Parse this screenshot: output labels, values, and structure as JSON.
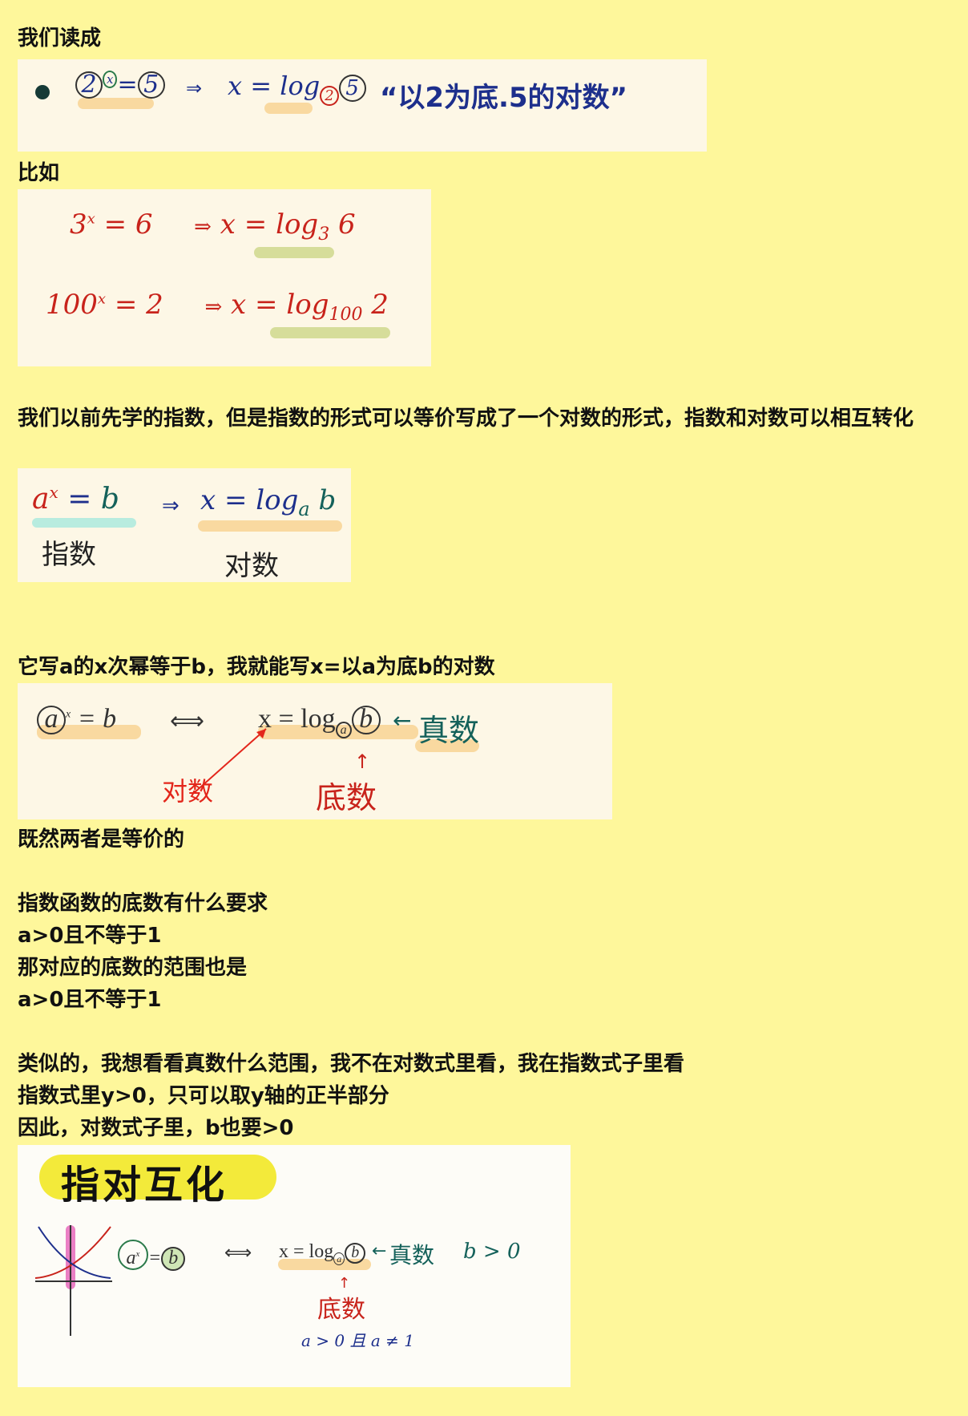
{
  "text": {
    "p1": "我们读成",
    "p2": "比如",
    "p3": "我们以前先学的指数，但是指数的形式可以等价写成了一个对数的形式，指数和对数可以相互转化",
    "p4": "它写a的x次幂等于b，我就能写x=以a为底b的对数",
    "p5": "既然两者是等价的",
    "p6": "指数函数的底数有什么要求",
    "p7": "a>0且不等于1",
    "p8": "那对应的底数的范围也是",
    "p9": "a>0且不等于1",
    "p10": "类似的，我想看看真数什么范围，我不在对数式里看，我在指数式子里看",
    "p11": "指数式里y>0，只可以取y轴的正半部分",
    "p12": "因此，对数式子里，b也要>0"
  },
  "img1": {
    "base": "2",
    "exp": "x",
    "eq": "=",
    "val": "5",
    "arrow": "⇒",
    "lhs": "x =",
    "log": "log",
    "sub": "2",
    "arg": "5",
    "caption": "“以2为底.5的对数”"
  },
  "img2": {
    "row1": {
      "base": "3",
      "exp": "x",
      "rest": "= 6",
      "arrow": "⇒",
      "lhs": "x =",
      "log": "log",
      "sub": "3",
      "arg": "6"
    },
    "row2": {
      "base": "100",
      "exp": "x",
      "rest": "= 2",
      "arrow": "⇒",
      "lhs": "x =",
      "log": "log",
      "sub": "100",
      "arg": "2"
    }
  },
  "img3": {
    "base": "a",
    "exp": "x",
    "eq": "=",
    "val": "b",
    "arrow": "⇒",
    "lhs": "x =",
    "log": "log",
    "sub": "a",
    "arg": "b",
    "label_left": "指数",
    "label_right": "对数"
  },
  "img4": {
    "base": "a",
    "exp": "x",
    "eq": "= b",
    "arrow": "⟺",
    "lhs": "x = log",
    "sub": "a",
    "arg": "b",
    "arrow_label": "←",
    "zhenshu": "真数",
    "duishu": "对数",
    "up": "↑",
    "dishu": "底数"
  },
  "img5": {
    "title": "指对互化",
    "base": "a",
    "exp": "x",
    "eq": "=",
    "val": "b",
    "arrow": "⟺",
    "lhs": "x = log",
    "sub": "a",
    "arg": "b",
    "arrow_label": "←",
    "zhenshu": "真数",
    "cond_b": "b > 0",
    "up": "↑",
    "dishu": "底数",
    "cond_a": "a > 0 且 a ≠ 1"
  },
  "colors": {
    "page_bg": "#fef79b",
    "card_bg": "#fdf7e6",
    "highlight_orange": "#f9d9a0",
    "highlight_green": "#d6dd9a",
    "highlight_cyan": "#b8ecdf",
    "navy": "#1d2f8c",
    "red": "#c8231b",
    "teal": "#14615a",
    "pill": "#f3ea3a"
  }
}
